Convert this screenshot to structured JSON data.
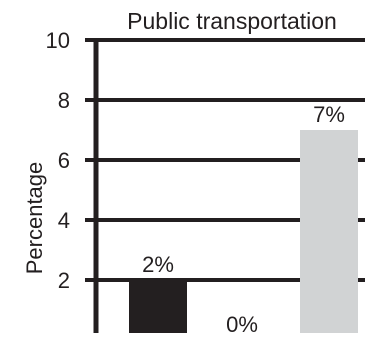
{
  "chart_data": {
    "type": "bar",
    "title": "Public transportation",
    "xlabel": "",
    "ylabel": "Percentage",
    "ylim": [
      0,
      10
    ],
    "yticks": [
      2,
      4,
      6,
      8,
      10
    ],
    "grid": true,
    "categories": [
      "",
      "",
      ""
    ],
    "values": [
      2,
      0,
      7
    ],
    "data_labels": [
      "2%",
      "0%",
      "7%"
    ],
    "colors": [
      "#231f20",
      "#231f20",
      "#d1d3d4"
    ],
    "axis_color": "#231f20"
  }
}
